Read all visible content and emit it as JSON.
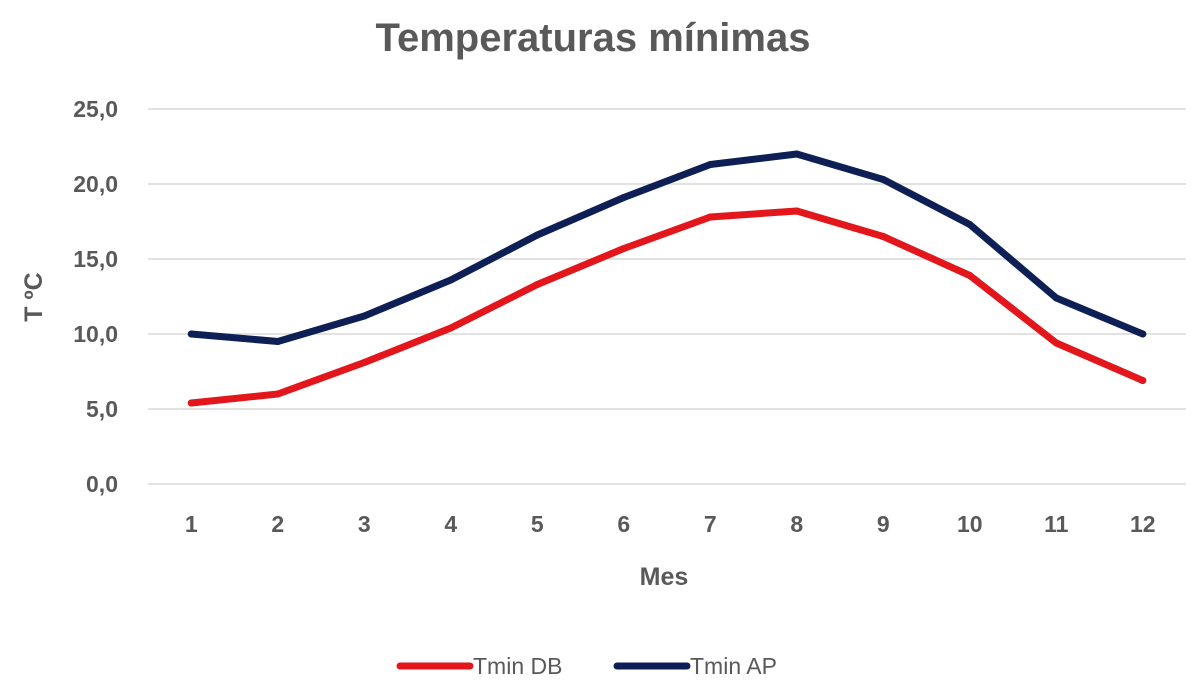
{
  "chart_data": {
    "type": "line",
    "title": "Temperaturas mínimas",
    "xlabel": "Mes",
    "ylabel": "T ºC",
    "categories": [
      "1",
      "2",
      "3",
      "4",
      "5",
      "6",
      "7",
      "8",
      "9",
      "10",
      "11",
      "12"
    ],
    "ylim": [
      0,
      25
    ],
    "yticks": [
      "0,0",
      "5,0",
      "10,0",
      "15,0",
      "20,0",
      "25,0"
    ],
    "grid": true,
    "legend_position": "bottom",
    "series": [
      {
        "name": "Tmin DB",
        "color": "#e3161b",
        "values": [
          5.4,
          6.0,
          8.1,
          10.4,
          13.3,
          15.7,
          17.8,
          18.2,
          16.5,
          13.9,
          9.4,
          6.9
        ]
      },
      {
        "name": "Tmin AP",
        "color": "#0d1f54",
        "values": [
          10.0,
          9.5,
          11.2,
          13.6,
          16.6,
          19.1,
          21.3,
          22.0,
          20.3,
          17.3,
          12.4,
          10.0
        ]
      }
    ]
  }
}
